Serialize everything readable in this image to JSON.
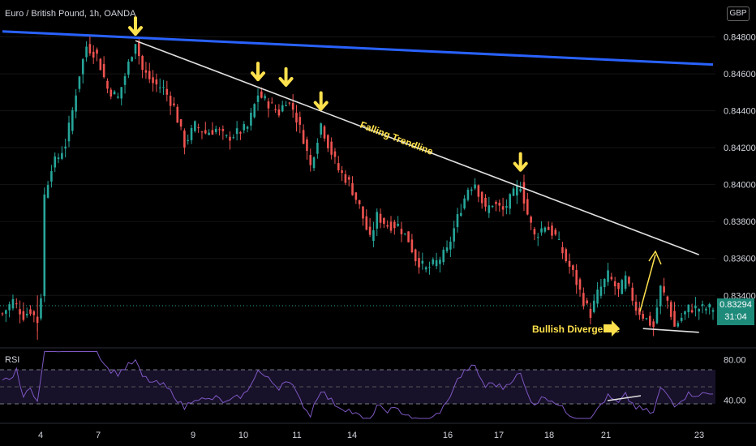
{
  "header": {
    "title": "Euro / British Pound, 1h, OANDA",
    "currency": "GBP"
  },
  "price_tag": {
    "value": "0.83294",
    "countdown": "31:04"
  },
  "chart_data": [
    {
      "type": "candlestick",
      "title": "Euro / British Pound, 1h, OANDA",
      "ylim": [
        0.8312,
        0.85
      ],
      "y_ticks": [
        "0.84800",
        "0.84600",
        "0.84400",
        "0.84200",
        "0.84000",
        "0.83800",
        "0.83600",
        "0.83400"
      ],
      "x_ticks": [
        "4",
        "7",
        "9",
        "10",
        "11",
        "14",
        "16",
        "17",
        "18",
        "21",
        "23"
      ],
      "current_price": 0.83294,
      "price_anchors": [
        [
          0,
          0.833
        ],
        [
          3,
          0.8337
        ],
        [
          6,
          0.8329
        ],
        [
          8,
          0.8332
        ],
        [
          10,
          0.8326
        ],
        [
          11,
          0.834
        ],
        [
          12,
          0.8394
        ],
        [
          14,
          0.841
        ],
        [
          16,
          0.8415
        ],
        [
          18,
          0.8422
        ],
        [
          20,
          0.844
        ],
        [
          22,
          0.846
        ],
        [
          24,
          0.8475
        ],
        [
          27,
          0.847
        ],
        [
          30,
          0.8452
        ],
        [
          33,
          0.8447
        ],
        [
          35,
          0.8459
        ],
        [
          38,
          0.8478
        ],
        [
          40,
          0.8462
        ],
        [
          43,
          0.8455
        ],
        [
          46,
          0.8452
        ],
        [
          49,
          0.8442
        ],
        [
          52,
          0.8422
        ],
        [
          55,
          0.8432
        ],
        [
          58,
          0.8428
        ],
        [
          61,
          0.843
        ],
        [
          64,
          0.8425
        ],
        [
          67,
          0.8428
        ],
        [
          70,
          0.8431
        ],
        [
          73,
          0.8449
        ],
        [
          76,
          0.8444
        ],
        [
          79,
          0.8439
        ],
        [
          81,
          0.8446
        ],
        [
          83,
          0.8441
        ],
        [
          86,
          0.8425
        ],
        [
          88,
          0.841
        ],
        [
          91,
          0.8433
        ],
        [
          93,
          0.8422
        ],
        [
          96,
          0.8408
        ],
        [
          99,
          0.8401
        ],
        [
          102,
          0.8388
        ],
        [
          105,
          0.837
        ],
        [
          107,
          0.8383
        ],
        [
          110,
          0.8378
        ],
        [
          113,
          0.8378
        ],
        [
          116,
          0.837
        ],
        [
          118,
          0.836
        ],
        [
          121,
          0.8354
        ],
        [
          124,
          0.8358
        ],
        [
          127,
          0.8364
        ],
        [
          130,
          0.8382
        ],
        [
          133,
          0.8398
        ],
        [
          135,
          0.8401
        ],
        [
          138,
          0.8386
        ],
        [
          140,
          0.839
        ],
        [
          143,
          0.8386
        ],
        [
          146,
          0.8395
        ],
        [
          148,
          0.84
        ],
        [
          150,
          0.8384
        ],
        [
          152,
          0.8372
        ],
        [
          155,
          0.8378
        ],
        [
          158,
          0.8372
        ],
        [
          161,
          0.8359
        ],
        [
          163,
          0.8352
        ],
        [
          166,
          0.8337
        ],
        [
          168,
          0.833
        ],
        [
          170,
          0.8341
        ],
        [
          173,
          0.8351
        ],
        [
          176,
          0.8342
        ],
        [
          178,
          0.8349
        ],
        [
          181,
          0.8333
        ],
        [
          184,
          0.8327
        ],
        [
          186,
          0.8323
        ],
        [
          188,
          0.8344
        ],
        [
          190,
          0.8337
        ],
        [
          192,
          0.8323
        ],
        [
          194,
          0.8328
        ],
        [
          196,
          0.8333
        ]
      ],
      "lines": [
        {
          "name": "",
          "color": "#2962ff",
          "from": [
            0,
            0.8483
          ],
          "to": [
            203,
            0.8465
          ]
        },
        {
          "name": "Falling Trendline",
          "color": "#e0e0e0",
          "from": [
            38,
            0.8478
          ],
          "to": [
            199,
            0.8362
          ]
        },
        {
          "name": "",
          "color": "#e0e0e0",
          "from": [
            183,
            0.8322
          ],
          "to": [
            199,
            0.832
          ]
        }
      ],
      "markers": [
        38,
        73,
        81,
        91,
        148
      ],
      "annotations": [
        {
          "text": "Falling Trendline"
        },
        {
          "text": "Bullish Divergence"
        }
      ]
    },
    {
      "type": "line",
      "title": "RSI",
      "ylim": [
        18,
        90
      ],
      "y_ticks": [
        "80.00",
        "40.00"
      ],
      "levels": [
        70,
        30
      ],
      "color": "#7e57c2"
    }
  ]
}
